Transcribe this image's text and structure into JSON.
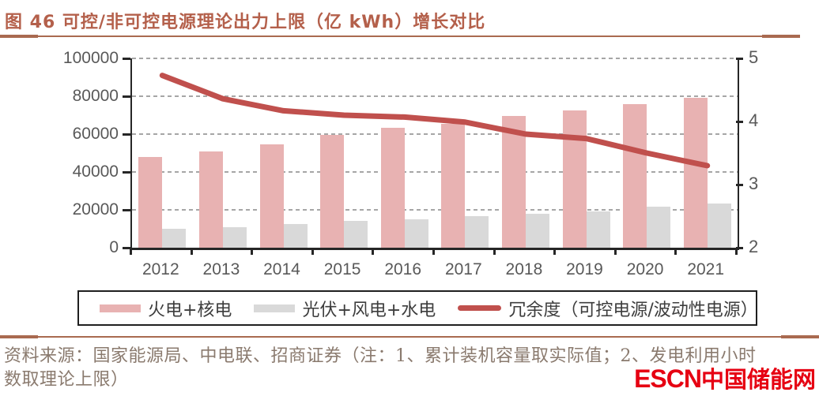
{
  "title": "图 46 可控/非可控电源理论出力上限（亿 kWh）增长对比",
  "chart_data": {
    "type": "bar",
    "subtype": "grouped-bars-with-line",
    "categories": [
      "2012",
      "2013",
      "2014",
      "2015",
      "2016",
      "2017",
      "2018",
      "2019",
      "2020",
      "2021"
    ],
    "series": [
      {
        "name": "火电+核电",
        "type": "bar",
        "axis": "left",
        "color": "#e8b2b2",
        "values": [
          48000,
          51000,
          54500,
          59500,
          63500,
          65500,
          69500,
          72500,
          76000,
          79000
        ]
      },
      {
        "name": "光伏+风电+水电",
        "type": "bar",
        "axis": "left",
        "color": "#d9d9d9",
        "values": [
          10000,
          11000,
          12500,
          14000,
          15000,
          16500,
          18000,
          19000,
          21500,
          23500
        ]
      },
      {
        "name": "冗余度（可控电源/波动性电源）",
        "type": "line",
        "axis": "right",
        "color": "#c0504d",
        "values": [
          4.73,
          4.36,
          4.17,
          4.1,
          4.07,
          3.99,
          3.8,
          3.73,
          3.5,
          3.3
        ]
      }
    ],
    "left_axis": {
      "min": 0,
      "max": 100000,
      "tick_values": [
        0,
        20000,
        40000,
        60000,
        80000,
        100000
      ],
      "tick_labels": [
        "0",
        "20000",
        "40000",
        "60000",
        "80000",
        "100000"
      ]
    },
    "right_axis": {
      "min": 2,
      "max": 5,
      "tick_values": [
        2,
        3,
        4,
        5
      ],
      "tick_labels": [
        "2",
        "3",
        "4",
        "5"
      ]
    },
    "grid": "horizontal-dashed",
    "legend_position": "bottom"
  },
  "legend": {
    "items": [
      {
        "label": "火电+核电",
        "color": "#e8b2b2",
        "swatch": "bar"
      },
      {
        "label": "光伏+风电+水电",
        "color": "#d9d9d9",
        "swatch": "bar"
      },
      {
        "label": "冗余度（可控电源/波动性电源）",
        "color": "#c0504d",
        "swatch": "line"
      }
    ]
  },
  "footer": {
    "source_line1": "资料来源：国家能源局、中电联、招商证券（注：1、累计装机容量取实际值；2、发电利用小时",
    "source_line2": "数取理论上限）",
    "logo_latin": "ESCN",
    "logo_cn": "中国储能网"
  },
  "colors": {
    "title": "#b4604b",
    "rule": "#a96a50",
    "axis_text": "#595959",
    "axis_line": "#262626",
    "gridline": "#a6a6a6",
    "legend_border": "#1f1f1f",
    "legend_text": "#3d3d3d",
    "footer_text": "#8a7a6e",
    "logo_red": "#e60012",
    "background": "#ffffff"
  }
}
